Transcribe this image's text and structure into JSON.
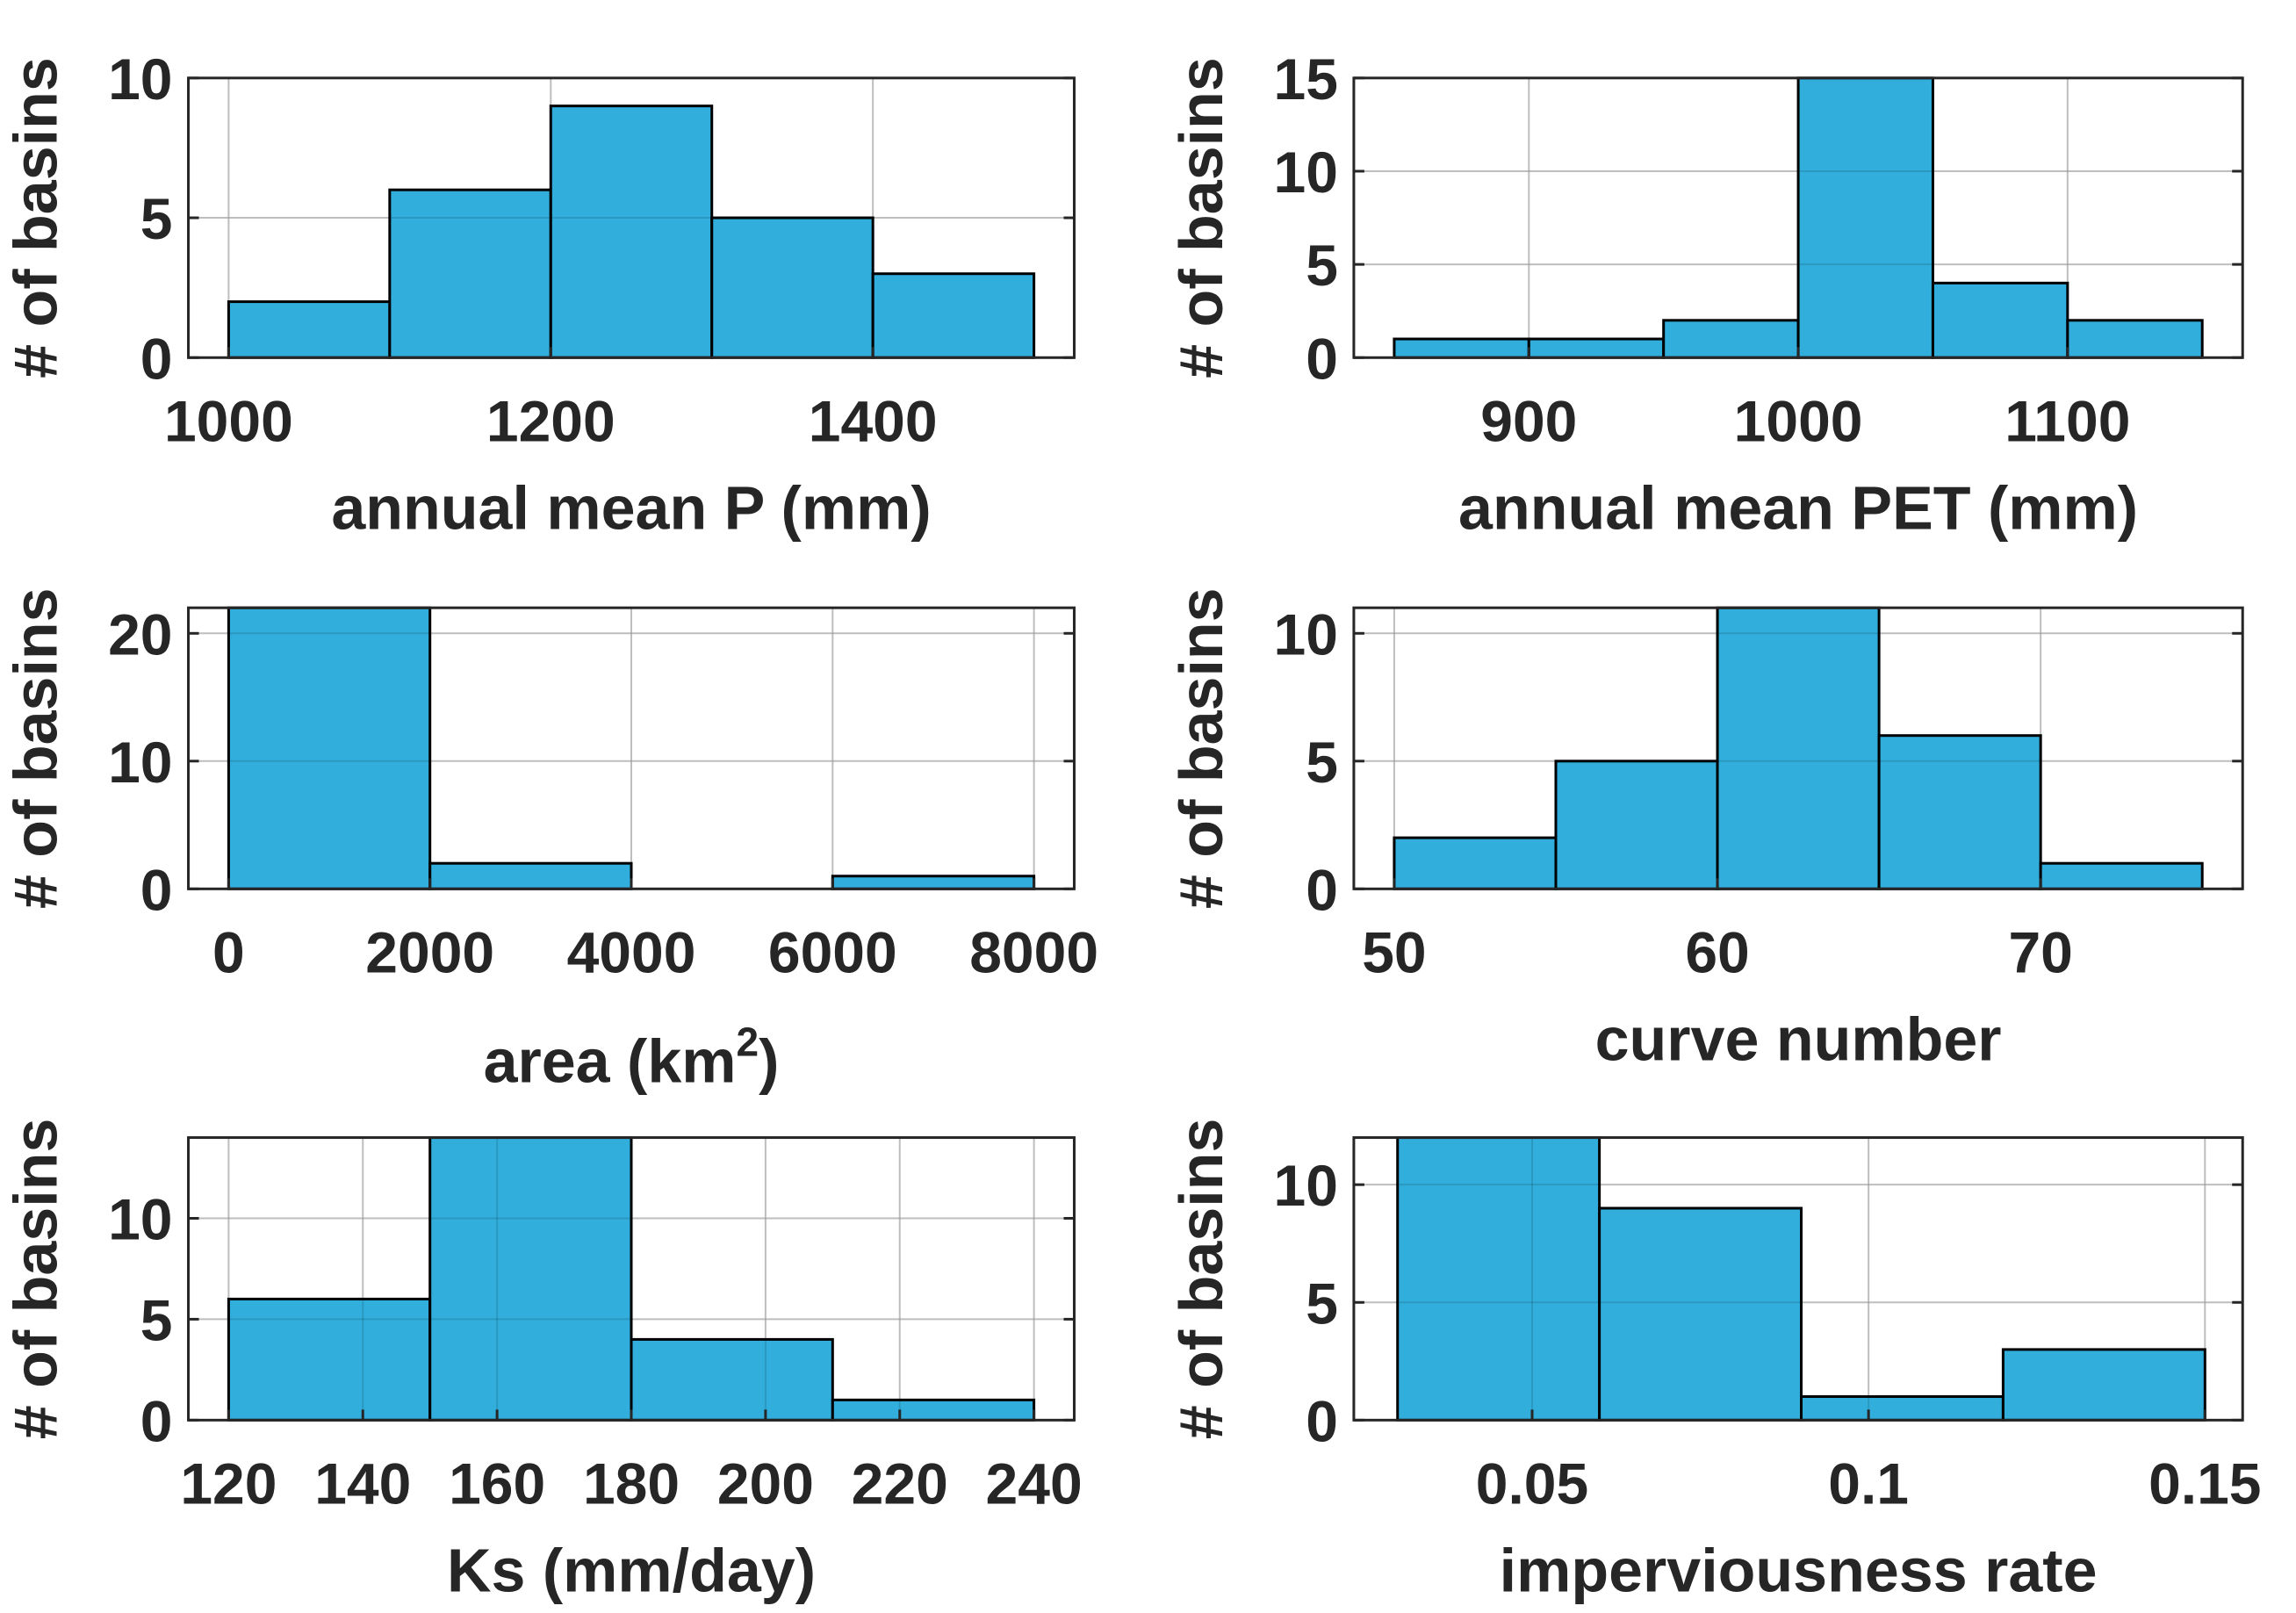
{
  "colors": {
    "bar": "#2aabdb",
    "edge": "#000000",
    "grid": "#d9d9d9",
    "axis": "#262626"
  },
  "chart_data": [
    {
      "type": "bar",
      "title": "",
      "xlabel_parts": [
        "annual mean P (mm)"
      ],
      "ylabel": "# of basins",
      "bin_edges": [
        1000,
        1100,
        1200,
        1300,
        1400,
        1500
      ],
      "values": [
        2,
        6,
        9,
        5,
        3
      ],
      "xlim": [
        975,
        1525
      ],
      "ylim": [
        0,
        10
      ],
      "xticks": [
        1000,
        1200,
        1400
      ],
      "xtick_labels": [
        "1000",
        "1200",
        "1400"
      ],
      "yticks": [
        0,
        5,
        10
      ],
      "ytick_labels": [
        "0",
        "5",
        "10"
      ],
      "grid": true
    },
    {
      "type": "bar",
      "title": "",
      "xlabel_parts": [
        "annual mean PET (mm)"
      ],
      "ylabel": "# of basins",
      "bin_edges": [
        850,
        900,
        950,
        1000,
        1050,
        1100,
        1150
      ],
      "values": [
        1,
        1,
        2,
        15,
        4,
        2
      ],
      "xlim": [
        835,
        1165
      ],
      "ylim": [
        0,
        15
      ],
      "xticks": [
        900,
        1000,
        1100
      ],
      "xtick_labels": [
        "900",
        "1000",
        "1100"
      ],
      "yticks": [
        0,
        5,
        10,
        15
      ],
      "ytick_labels": [
        "0",
        "5",
        "10",
        "15"
      ],
      "grid": true
    },
    {
      "type": "bar",
      "title": "",
      "xlabel_parts": [
        "area (km",
        "2",
        ")"
      ],
      "ylabel": "# of basins",
      "bin_edges": [
        0,
        2000,
        4000,
        6000,
        8000
      ],
      "values": [
        22,
        2,
        0,
        1
      ],
      "xlim": [
        -400,
        8400
      ],
      "ylim": [
        0,
        22
      ],
      "xticks": [
        0,
        2000,
        4000,
        6000,
        8000
      ],
      "xtick_labels": [
        "0",
        "2000",
        "4000",
        "6000",
        "8000"
      ],
      "yticks": [
        0,
        10,
        20
      ],
      "ytick_labels": [
        "0",
        "10",
        "20"
      ],
      "grid": true
    },
    {
      "type": "bar",
      "title": "",
      "xlabel_parts": [
        "curve number"
      ],
      "ylabel": "# of basins",
      "bin_edges": [
        50,
        55,
        60,
        65,
        70,
        75
      ],
      "values": [
        2,
        5,
        11,
        6,
        1
      ],
      "xlim": [
        48.75,
        76.25
      ],
      "ylim": [
        0,
        11
      ],
      "xticks": [
        50,
        60,
        70
      ],
      "xtick_labels": [
        "50",
        "60",
        "70"
      ],
      "yticks": [
        0,
        5,
        10
      ],
      "ytick_labels": [
        "0",
        "5",
        "10"
      ],
      "grid": true
    },
    {
      "type": "bar",
      "title": "",
      "xlabel_parts": [
        "Ks (mm/day)"
      ],
      "ylabel": "# of basins",
      "bin_edges": [
        120,
        150,
        180,
        210,
        240
      ],
      "values": [
        6,
        14,
        4,
        1
      ],
      "xlim": [
        114,
        246
      ],
      "ylim": [
        0,
        14
      ],
      "xticks": [
        120,
        140,
        160,
        180,
        200,
        220,
        240
      ],
      "xtick_labels": [
        "120",
        "140",
        "160",
        "180",
        "200",
        "220",
        "240"
      ],
      "yticks": [
        0,
        5,
        10
      ],
      "ytick_labels": [
        "0",
        "5",
        "10"
      ],
      "grid": true
    },
    {
      "type": "bar",
      "title": "",
      "xlabel_parts": [
        "imperviousness rate"
      ],
      "ylabel": "# of basins",
      "bin_edges": [
        0.03,
        0.06,
        0.09,
        0.12,
        0.15
      ],
      "values": [
        12,
        9,
        1,
        3
      ],
      "xlim": [
        0.0235,
        0.1556
      ],
      "ylim": [
        0,
        12
      ],
      "xticks": [
        0.05,
        0.1,
        0.15
      ],
      "xtick_labels": [
        "0.05",
        "0.1",
        "0.15"
      ],
      "yticks": [
        0,
        5,
        10
      ],
      "ytick_labels": [
        "0",
        "5",
        "10"
      ],
      "grid": true
    }
  ]
}
